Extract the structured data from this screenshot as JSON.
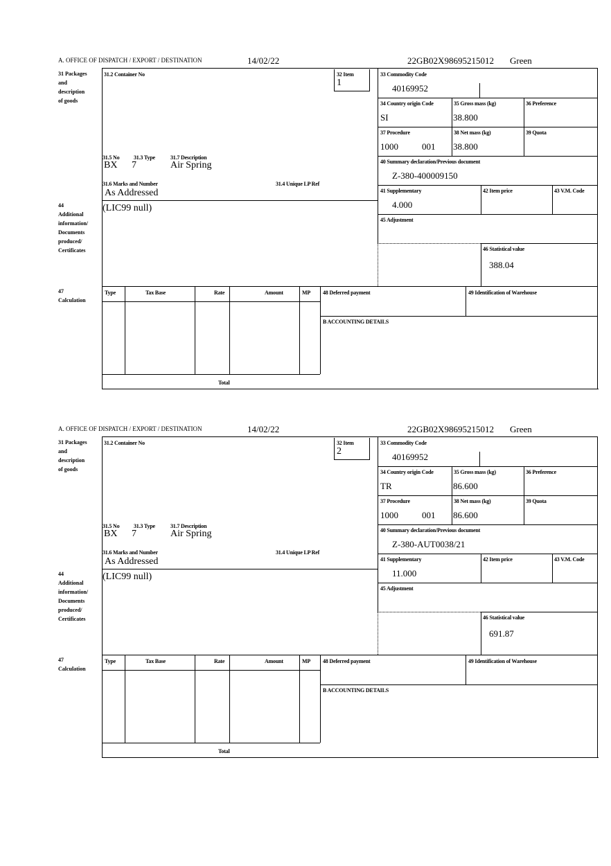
{
  "labels": {
    "office": "A. OFFICE OF DISPATCH / EXPORT / DESTINATION",
    "box31": "31 Packages\nand\ndescription\nof goods",
    "box31_2": "31.2 Container No",
    "box32": "32 Item",
    "box31_5": "31.5 No",
    "box31_3": "31.3 Type",
    "box31_7": "31.7 Description",
    "box31_6": "31.6 Marks and Number",
    "box31_4": "31.4 Unique LP Ref",
    "box44": "44\nAdditional\ninformation/\nDocuments\nproduced/\nCertificates",
    "box33": "33 Commodity Code",
    "box34": "34 Country origin Code",
    "box35": "35 Gross mass (kg)",
    "box36": "36 Preference",
    "box37": "37 Procedure",
    "box38": "38 Net mass (kg)",
    "box39": "39 Quota",
    "box40": "40 Summary declaration/Previous document",
    "box41": "41 Supplementary",
    "box42": "42 Item price",
    "box43": "43 V.M. Code",
    "box45": "45 Adjustment",
    "box46": "46 Statistical value",
    "box47": "47\nCalculation",
    "col_type": "Type",
    "col_tax_base": "Tax Base",
    "col_rate": "Rate",
    "col_amount": "Amount",
    "col_mp": "MP",
    "box48": "48 Deferred payment",
    "box49": "49 Identification of Warehouse",
    "accounting": "B ACCOUNTING DETAILS",
    "total": "Total"
  },
  "items": [
    {
      "date": "14/02/22",
      "reference": "22GB02X98695215012",
      "route": "Green",
      "item_no": "1",
      "packages_no": "BX",
      "package_type": "7",
      "description": "Air Spring",
      "marks": "As Addressed",
      "additional_info": "(LIC99 null)",
      "commodity_code": "40169952",
      "country_origin": "SI",
      "gross_mass": "38.800",
      "procedure": "1000",
      "procedure_add": "001",
      "net_mass": "38.800",
      "previous_document": "Z-380-400009150",
      "supplementary": "4.000",
      "statistical_value": "388.04"
    },
    {
      "date": "14/02/22",
      "reference": "22GB02X98695215012",
      "route": "Green",
      "item_no": "2",
      "packages_no": "BX",
      "package_type": "7",
      "description": "Air Spring",
      "marks": "As Addressed",
      "additional_info": "(LIC99 null)",
      "commodity_code": "40169952",
      "country_origin": "TR",
      "gross_mass": "86.600",
      "procedure": "1000",
      "procedure_add": "001",
      "net_mass": "86.600",
      "previous_document": "Z-380-AUT0038/21",
      "supplementary": "11.000",
      "statistical_value": "691.87"
    }
  ]
}
